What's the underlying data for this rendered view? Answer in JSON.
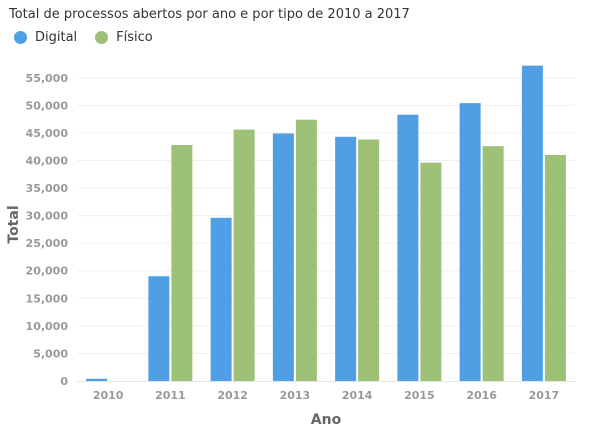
{
  "chart_data": {
    "type": "bar",
    "title": "Total de processos abertos por ano e por tipo de 2010 a 2017",
    "xlabel": "Ano",
    "ylabel": "Total",
    "categories": [
      "2010",
      "2011",
      "2012",
      "2013",
      "2014",
      "2015",
      "2016",
      "2017"
    ],
    "series": [
      {
        "name": "Digital",
        "color": "#509ee3",
        "values": [
          400,
          19000,
          29600,
          44900,
          44300,
          48300,
          50400,
          57200
        ]
      },
      {
        "name": "Físico",
        "color": "#9cc177",
        "values": [
          0,
          42800,
          45600,
          47400,
          43800,
          39600,
          42600,
          41000
        ]
      }
    ],
    "ylim": [
      0,
      57500
    ],
    "yticks": [
      0,
      5000,
      10000,
      15000,
      20000,
      25000,
      30000,
      35000,
      40000,
      45000,
      50000,
      55000
    ],
    "ytick_labels": [
      "0",
      "5,000",
      "10,000",
      "15,000",
      "20,000",
      "25,000",
      "30,000",
      "35,000",
      "40,000",
      "45,000",
      "50,000",
      "55,000"
    ],
    "grid": true,
    "legend_position": "top-left"
  }
}
